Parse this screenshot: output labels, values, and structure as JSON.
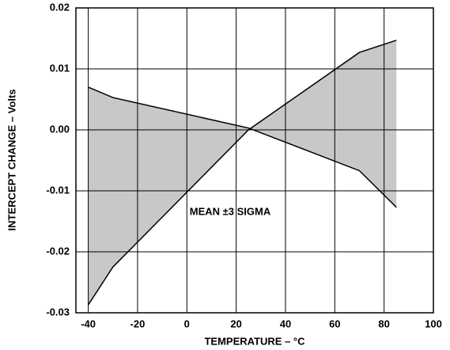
{
  "chart_data": {
    "type": "line",
    "x_label": "TEMPERATURE – °C",
    "y_label": "INTERCEPT CHANGE – Volts",
    "annotation": "MEAN ±3 SIGMA",
    "x": [
      -40,
      -30,
      25,
      70,
      85
    ],
    "series": [
      {
        "color": "#000000",
        "values": [
          0.007,
          0.0053,
          0.0003,
          -0.0067,
          -0.0127
        ]
      },
      {
        "color": "#000000",
        "values": [
          -0.0287,
          -0.0225,
          0.0,
          0.0127,
          0.0147
        ]
      }
    ],
    "fill_color": "#c8c8c8",
    "xlim": [
      -45,
      100
    ],
    "xticks": [
      -40,
      -20,
      0,
      20,
      40,
      60,
      80,
      100
    ],
    "ylim": [
      -0.03,
      0.02
    ],
    "yticks": [
      0.02,
      0.01,
      {
        "value": 0,
        "label": "0.00"
      },
      -0.01,
      -0.02,
      -0.03
    ],
    "grid": true
  }
}
